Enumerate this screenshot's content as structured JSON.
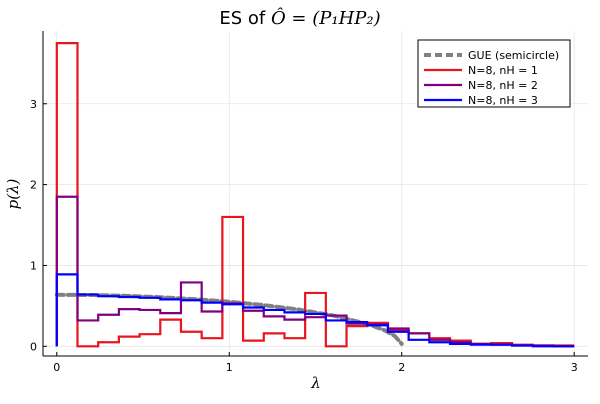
{
  "chart_data": {
    "type": "line",
    "title_prefix": "ES of ",
    "title_math": "Ô = (P₁HP₂)",
    "xlabel": "λ",
    "ylabel": "p(λ)",
    "xlim": [
      -0.08,
      3.08
    ],
    "ylim": [
      -0.12,
      3.9
    ],
    "x_ticks": [
      0,
      1,
      2,
      3
    ],
    "x_tick_labels": [
      "0",
      "1",
      "2",
      "3"
    ],
    "y_ticks": [
      0,
      1,
      2,
      3
    ],
    "y_tick_labels": [
      "0",
      "1",
      "2",
      "3"
    ],
    "grid": true,
    "legend_position": "top-right",
    "series": [
      {
        "name": "GUE (semicircle)",
        "kind": "curve",
        "color": "#808080",
        "dashed": true,
        "x": [
          0,
          0.2,
          0.4,
          0.6,
          0.8,
          1.0,
          1.2,
          1.4,
          1.6,
          1.8,
          1.9,
          1.96,
          2.0
        ],
        "y": [
          0.637,
          0.634,
          0.624,
          0.607,
          0.583,
          0.551,
          0.509,
          0.455,
          0.382,
          0.278,
          0.199,
          0.127,
          0.03
        ]
      },
      {
        "name": "N=8, nH = 1",
        "kind": "step",
        "color": "#e8141e",
        "edges": [
          0,
          0.12,
          0.24,
          0.36,
          0.48,
          0.6,
          0.72,
          0.84,
          0.96,
          1.08,
          1.2,
          1.32,
          1.44,
          1.56,
          1.68,
          1.8,
          1.92,
          2.04,
          2.16,
          2.28,
          2.4,
          2.52,
          2.64,
          2.76,
          2.88,
          3.0
        ],
        "values": [
          3.75,
          0.0,
          0.05,
          0.12,
          0.15,
          0.33,
          0.18,
          0.1,
          1.6,
          0.07,
          0.16,
          0.1,
          0.66,
          0.0,
          0.25,
          0.29,
          0.2,
          0.16,
          0.1,
          0.07,
          0.03,
          0.04,
          0.02,
          0.01,
          0.01
        ]
      },
      {
        "name": "N=8, nH = 2",
        "kind": "step",
        "color": "#800080",
        "edges": [
          0,
          0.12,
          0.24,
          0.36,
          0.48,
          0.6,
          0.72,
          0.84,
          0.96,
          1.08,
          1.2,
          1.32,
          1.44,
          1.56,
          1.68,
          1.8,
          1.92,
          2.04,
          2.16,
          2.28,
          2.4,
          2.52,
          2.64,
          2.76,
          2.88,
          3.0
        ],
        "values": [
          1.85,
          0.32,
          0.39,
          0.46,
          0.45,
          0.41,
          0.79,
          0.43,
          0.53,
          0.44,
          0.37,
          0.33,
          0.36,
          0.38,
          0.28,
          0.27,
          0.22,
          0.16,
          0.08,
          0.05,
          0.03,
          0.02,
          0.01,
          0.01,
          0.0
        ]
      },
      {
        "name": "N=8, nH = 3",
        "kind": "step",
        "color": "#0000ff",
        "edges": [
          0,
          0.12,
          0.24,
          0.36,
          0.48,
          0.6,
          0.72,
          0.84,
          0.96,
          1.08,
          1.2,
          1.32,
          1.44,
          1.56,
          1.68,
          1.8,
          1.92,
          2.04,
          2.16,
          2.28,
          2.4,
          2.52,
          2.64,
          2.76,
          2.88,
          3.0
        ],
        "values": [
          0.89,
          0.64,
          0.62,
          0.61,
          0.6,
          0.58,
          0.57,
          0.54,
          0.52,
          0.48,
          0.45,
          0.42,
          0.4,
          0.32,
          0.3,
          0.26,
          0.18,
          0.08,
          0.05,
          0.03,
          0.02,
          0.02,
          0.01,
          0.0,
          0.0
        ]
      }
    ]
  }
}
